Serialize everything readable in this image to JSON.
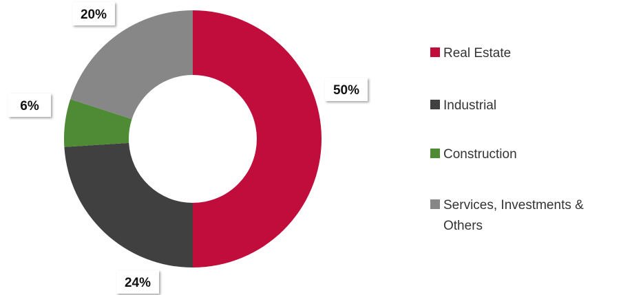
{
  "chart_data": {
    "type": "pie",
    "variant": "donut",
    "title": "",
    "categories": [
      "Real Estate",
      "Industrial",
      "Construction",
      "Services, Investments & Others"
    ],
    "values": [
      50,
      24,
      6,
      20
    ],
    "data_labels": [
      "50%",
      "24%",
      "6%",
      "20%"
    ],
    "colors": [
      "#C00D3B",
      "#404040",
      "#4E8B34",
      "#878787"
    ],
    "legend": {
      "position": "right",
      "entries": [
        {
          "label": "Real Estate",
          "color": "#C00D3B"
        },
        {
          "label": "Industrial",
          "color": "#404040"
        },
        {
          "label": "Construction",
          "color": "#4E8B34"
        },
        {
          "label": "Services, Investments & Others",
          "lines": [
            "Services, Investments &",
            "Others"
          ],
          "color": "#878787"
        }
      ]
    }
  }
}
